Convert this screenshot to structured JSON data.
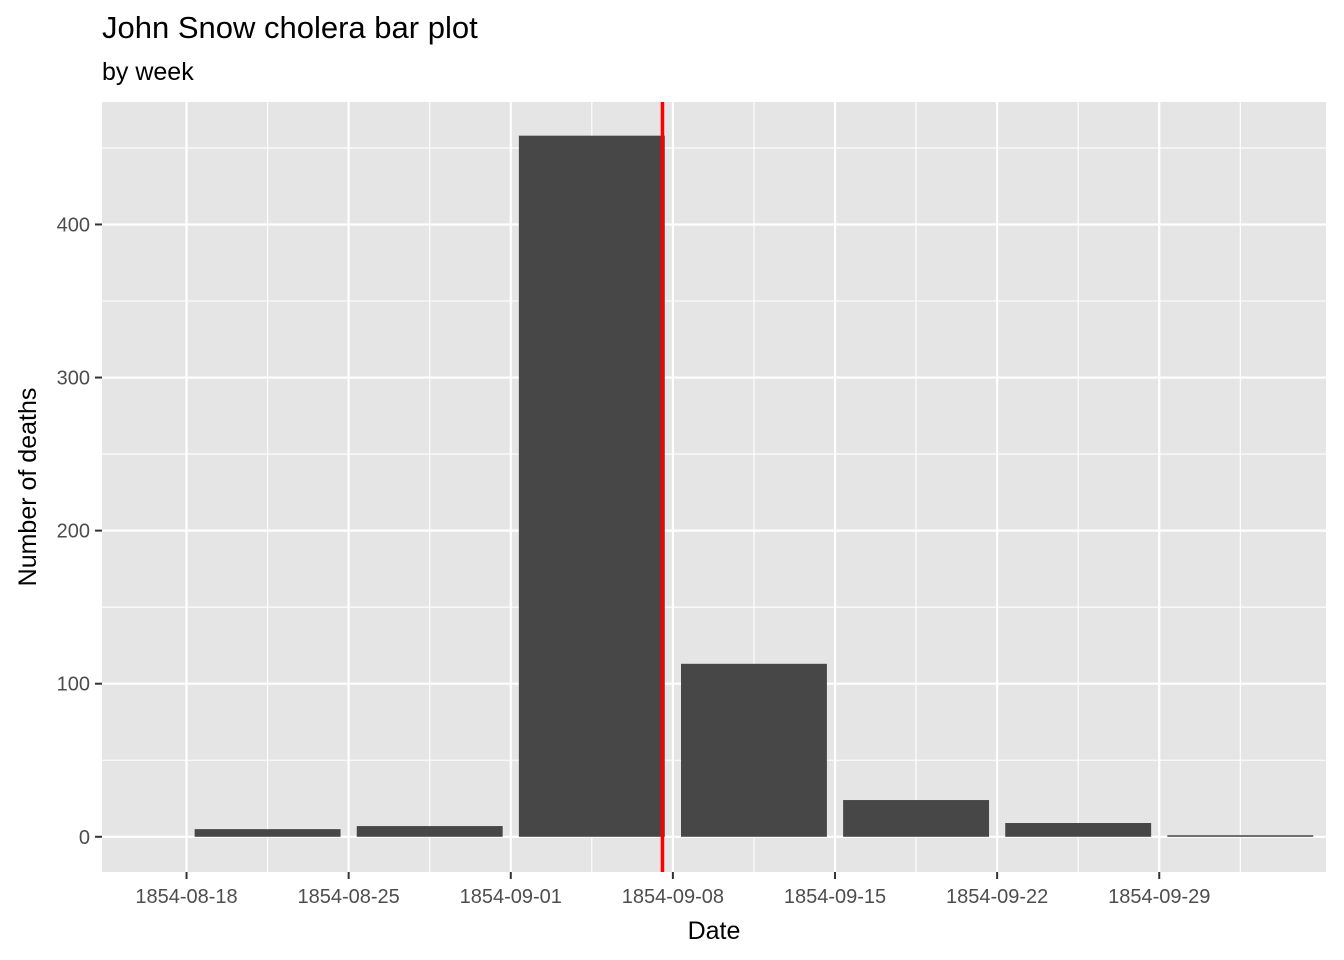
{
  "chart_data": {
    "type": "bar",
    "title": "John Snow cholera bar plot",
    "subtitle": "by week",
    "xlabel": "Date",
    "ylabel": "Number of deaths",
    "categories": [
      "1854-08-18",
      "1854-08-25",
      "1854-09-01",
      "1854-09-08",
      "1854-09-15",
      "1854-09-22",
      "1854-09-29"
    ],
    "values": [
      5,
      7,
      458,
      113,
      24,
      9,
      1
    ],
    "x_ticks": [
      "1854-08-18",
      "1854-08-25",
      "1854-09-01",
      "1854-09-08",
      "1854-09-15",
      "1854-09-22",
      "1854-09-29"
    ],
    "y_ticks": [
      0,
      100,
      200,
      300,
      400
    ],
    "ylim": [
      -23,
      480
    ],
    "xlim": [
      "1854-08-18",
      "1854-10-13"
    ],
    "reference_line": {
      "date": "1854-09-08",
      "color": "#ff0000"
    },
    "bar_color": "#474747",
    "panel_background": "#e5e5e5",
    "grid_color": "#ffffff",
    "grid": true,
    "legend": "none"
  }
}
